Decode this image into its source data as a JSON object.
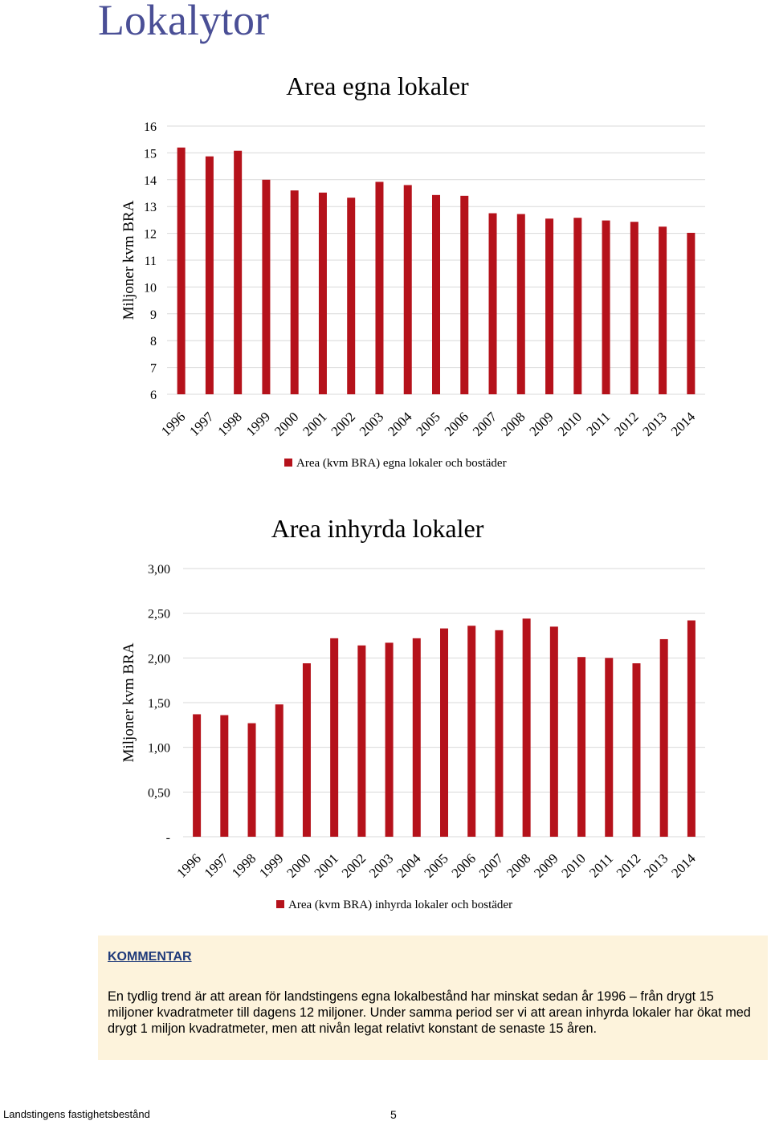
{
  "page": {
    "title": "Lokalytor",
    "footer_left": "Landstingens fastighetsbestånd",
    "page_number": "5"
  },
  "comment": {
    "heading": "KOMMENTAR",
    "text": "En tydlig trend är att arean för landstingens egna lokalbestånd har minskat sedan år 1996 – från drygt 15 miljoner kvadratmeter till dagens 12 miljoner. Under samma period ser vi att arean inhyrda lokaler har ökat med drygt 1 miljon kvadratmeter, men att nivån legat relativt konstant de senaste 15 åren."
  },
  "colors": {
    "bar": "#b5121b",
    "grid": "#d9d9d9",
    "title": "#4a4f96"
  },
  "chart_data": [
    {
      "type": "bar",
      "title": "Area egna lokaler",
      "ylabel": "Miljoner kvm BRA",
      "xlabel": "",
      "categories": [
        "1996",
        "1997",
        "1998",
        "1999",
        "2000",
        "2001",
        "2002",
        "2003",
        "2004",
        "2005",
        "2006",
        "2007",
        "2008",
        "2009",
        "2010",
        "2011",
        "2012",
        "2013",
        "2014"
      ],
      "series": [
        {
          "name": "Area (kvm BRA) egna lokaler och bostäder",
          "values": [
            15.2,
            14.87,
            15.08,
            14.0,
            13.6,
            13.52,
            13.33,
            13.92,
            13.8,
            13.43,
            13.4,
            12.75,
            12.72,
            12.55,
            12.58,
            12.48,
            12.43,
            12.25,
            12.02
          ]
        }
      ],
      "ylim": [
        6,
        16
      ],
      "yticks": [
        "6",
        "7",
        "8",
        "9",
        "10",
        "11",
        "12",
        "13",
        "14",
        "15",
        "16"
      ],
      "grid": true,
      "legend": "bottom"
    },
    {
      "type": "bar",
      "title": "Area inhyrda lokaler",
      "ylabel": "Miljoner kvm BRA",
      "xlabel": "",
      "categories": [
        "1996",
        "1997",
        "1998",
        "1999",
        "2000",
        "2001",
        "2002",
        "2003",
        "2004",
        "2005",
        "2006",
        "2007",
        "2008",
        "2009",
        "2010",
        "2011",
        "2012",
        "2013",
        "2014"
      ],
      "series": [
        {
          "name": "Area (kvm BRA) inhyrda lokaler och bostäder",
          "values": [
            1.37,
            1.36,
            1.27,
            1.48,
            1.94,
            2.22,
            2.14,
            2.17,
            2.22,
            2.33,
            2.36,
            2.31,
            2.44,
            2.35,
            2.01,
            2.0,
            1.94,
            2.21,
            2.42
          ]
        }
      ],
      "ylim": [
        0,
        3
      ],
      "yticks": [
        "-",
        "0,50",
        "1,00",
        "1,50",
        "2,00",
        "2,50",
        "3,00"
      ],
      "grid": true,
      "legend": "bottom"
    }
  ]
}
